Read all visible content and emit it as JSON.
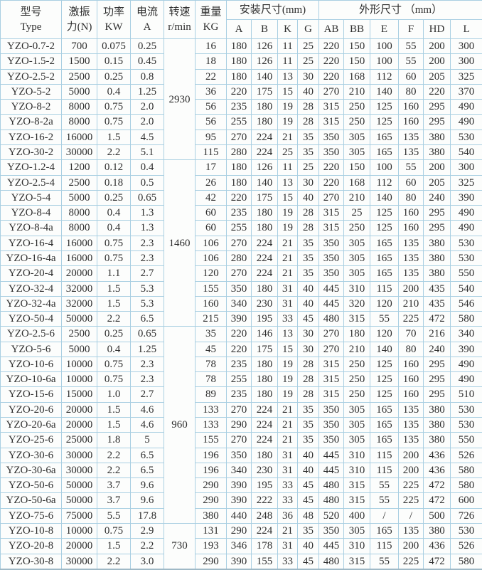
{
  "colors": {
    "grid": "#a9cfe2",
    "text": "#2e2e2e",
    "bg": "#fcfdfc"
  },
  "table": {
    "headers": {
      "type": {
        "l1": "型号",
        "l2": "Type"
      },
      "force": {
        "l1": "激振",
        "l2": "力(N)"
      },
      "power": {
        "l1": "功率",
        "l2": "KW"
      },
      "current": {
        "l1": "电流",
        "l2": "A"
      },
      "speed": {
        "l1": "转速",
        "l2": "r/min"
      },
      "weight": {
        "l1": "重量",
        "l2": "KG"
      },
      "install_group": "安装尺寸(mm)",
      "install_cols": [
        "A",
        "B",
        "K",
        "G"
      ],
      "shape_group": "外形尺寸 （mm）",
      "shape_cols": [
        "AB",
        "BB",
        "E",
        "F",
        "HD",
        "L"
      ]
    },
    "speed_groups": [
      {
        "rpm": "2930",
        "rows": 8
      },
      {
        "rpm": "1460",
        "rows": 11
      },
      {
        "rpm": "960",
        "rows": 13
      },
      {
        "rpm": "730",
        "rows": 3
      }
    ],
    "col_keys": [
      "type",
      "force",
      "power",
      "current",
      "weight",
      "a",
      "b",
      "k",
      "g",
      "ab",
      "bb",
      "e",
      "f",
      "hd",
      "l"
    ],
    "rows": [
      [
        "YZO-0.7-2",
        "700",
        "0.075",
        "0.25",
        "16",
        "180",
        "126",
        "11",
        "25",
        "220",
        "150",
        "100",
        "55",
        "200",
        "300"
      ],
      [
        "YZO-1.5-2",
        "1500",
        "0.15",
        "0.45",
        "18",
        "180",
        "126",
        "11",
        "25",
        "220",
        "150",
        "100",
        "55",
        "200",
        "300"
      ],
      [
        "YZO-2.5-2",
        "2500",
        "0.25",
        "0.8",
        "22",
        "180",
        "140",
        "13",
        "30",
        "220",
        "168",
        "112",
        "60",
        "205",
        "325"
      ],
      [
        "YZO-5-2",
        "5000",
        "0.4",
        "1.25",
        "36",
        "220",
        "175",
        "15",
        "40",
        "270",
        "210",
        "140",
        "80",
        "220",
        "370"
      ],
      [
        "YZO-8-2",
        "8000",
        "0.75",
        "2.0",
        "56",
        "235",
        "180",
        "19",
        "28",
        "315",
        "250",
        "125",
        "160",
        "295",
        "490"
      ],
      [
        "YZO-8-2a",
        "8000",
        "0.75",
        "2.0",
        "56",
        "255",
        "180",
        "19",
        "28",
        "315",
        "250",
        "125",
        "160",
        "295",
        "490"
      ],
      [
        "YZO-16-2",
        "16000",
        "1.5",
        "4.5",
        "95",
        "270",
        "224",
        "21",
        "35",
        "350",
        "305",
        "165",
        "135",
        "380",
        "530"
      ],
      [
        "YZO-30-2",
        "30000",
        "2.2",
        "5.1",
        "115",
        "280",
        "224",
        "25",
        "35",
        "350",
        "305",
        "165",
        "135",
        "380",
        "540"
      ],
      [
        "YZO-1.2-4",
        "1200",
        "0.12",
        "0.4",
        "17",
        "180",
        "126",
        "11",
        "25",
        "220",
        "150",
        "100",
        "55",
        "200",
        "300"
      ],
      [
        "YZO-2.5-4",
        "2500",
        "0.18",
        "0.5",
        "26",
        "180",
        "140",
        "13",
        "30",
        "220",
        "168",
        "112",
        "60",
        "205",
        "325"
      ],
      [
        "YZO-5-4",
        "5000",
        "0.25",
        "0.65",
        "42",
        "220",
        "175",
        "15",
        "40",
        "270",
        "210",
        "140",
        "80",
        "240",
        "390"
      ],
      [
        "YZO-8-4",
        "8000",
        "0.4",
        "1.3",
        "60",
        "235",
        "180",
        "19",
        "28",
        "315",
        "25",
        "125",
        "160",
        "295",
        "490"
      ],
      [
        "YZO-8-4a",
        "8000",
        "0.4",
        "1.3",
        "60",
        "255",
        "180",
        "19",
        "28",
        "315",
        "250",
        "125",
        "160",
        "295",
        "490"
      ],
      [
        "YZO-16-4",
        "16000",
        "0.75",
        "2.3",
        "106",
        "270",
        "224",
        "21",
        "35",
        "350",
        "305",
        "165",
        "135",
        "380",
        "530"
      ],
      [
        "YZO-16-4a",
        "16000",
        "0.75",
        "2.3",
        "106",
        "280",
        "224",
        "21",
        "35",
        "350",
        "305",
        "165",
        "135",
        "380",
        "530"
      ],
      [
        "YZO-20-4",
        "20000",
        "1.1",
        "2.7",
        "120",
        "270",
        "224",
        "21",
        "35",
        "350",
        "305",
        "165",
        "135",
        "380",
        "550"
      ],
      [
        "YZO-32-4",
        "32000",
        "1.5",
        "5.3",
        "155",
        "350",
        "180",
        "31",
        "40",
        "445",
        "310",
        "115",
        "200",
        "435",
        "540"
      ],
      [
        "YZO-32-4a",
        "32000",
        "1.5",
        "5.3",
        "160",
        "340",
        "230",
        "31",
        "40",
        "445",
        "320",
        "120",
        "210",
        "435",
        "546"
      ],
      [
        "YZO-50-4",
        "50000",
        "2.2",
        "6.5",
        "215",
        "390",
        "195",
        "33",
        "45",
        "480",
        "315",
        "55",
        "225",
        "472",
        "580"
      ],
      [
        "YZO-2.5-6",
        "2500",
        "0.25",
        "0.65",
        "35",
        "220",
        "146",
        "13",
        "30",
        "270",
        "180",
        "120",
        "70",
        "216",
        "340"
      ],
      [
        "YZO-5-6",
        "5000",
        "0.4",
        "1.25",
        "45",
        "220",
        "175",
        "15",
        "30",
        "270",
        "210",
        "140",
        "80",
        "240",
        "390"
      ],
      [
        "YZO-10-6",
        "10000",
        "0.75",
        "2.3",
        "78",
        "235",
        "180",
        "19",
        "28",
        "315",
        "250",
        "125",
        "160",
        "295",
        "490"
      ],
      [
        "YZO-10-6a",
        "10000",
        "0.75",
        "2.3",
        "78",
        "255",
        "180",
        "19",
        "28",
        "315",
        "250",
        "125",
        "160",
        "295",
        "490"
      ],
      [
        "YZO-15-6",
        "15000",
        "1.0",
        "2.7",
        "89",
        "235",
        "180",
        "19",
        "28",
        "315",
        "250",
        "125",
        "160",
        "295",
        "510"
      ],
      [
        "YZO-20-6",
        "20000",
        "1.5",
        "4.6",
        "133",
        "270",
        "224",
        "21",
        "35",
        "350",
        "305",
        "165",
        "135",
        "380",
        "530"
      ],
      [
        "YZO-20-6a",
        "20000",
        "1.5",
        "4.6",
        "133",
        "290",
        "224",
        "21",
        "35",
        "350",
        "305",
        "165",
        "135",
        "380",
        "530"
      ],
      [
        "YZO-25-6",
        "25000",
        "1.8",
        "5",
        "155",
        "270",
        "224",
        "21",
        "35",
        "350",
        "305",
        "165",
        "135",
        "380",
        "550"
      ],
      [
        "YZO-30-6",
        "30000",
        "2.2",
        "6.5",
        "196",
        "350",
        "180",
        "31",
        "40",
        "445",
        "310",
        "115",
        "200",
        "436",
        "526"
      ],
      [
        "YZO-30-6a",
        "30000",
        "2.2",
        "6.5",
        "196",
        "340",
        "230",
        "31",
        "40",
        "445",
        "310",
        "115",
        "200",
        "436",
        "580"
      ],
      [
        "YZO-50-6",
        "50000",
        "3.7",
        "9.6",
        "290",
        "390",
        "195",
        "33",
        "45",
        "480",
        "315",
        "55",
        "225",
        "472",
        "580"
      ],
      [
        "YZO-50-6a",
        "50000",
        "3.7",
        "9.6",
        "290",
        "390",
        "222",
        "33",
        "45",
        "480",
        "315",
        "55",
        "225",
        "472",
        "600"
      ],
      [
        "YZO-75-6",
        "75000",
        "5.5",
        "17.8",
        "380",
        "440",
        "248",
        "36",
        "48",
        "520",
        "400",
        "/",
        "/",
        "500",
        "726"
      ],
      [
        "YZO-10-8",
        "10000",
        "0.75",
        "2.9",
        "131",
        "290",
        "224",
        "21",
        "35",
        "350",
        "305",
        "165",
        "135",
        "380",
        "530"
      ],
      [
        "YZO-20-8",
        "20000",
        "1.5",
        "2.2",
        "193",
        "346",
        "178",
        "31",
        "40",
        "445",
        "310",
        "115",
        "200",
        "436",
        "526"
      ],
      [
        "YZO-30-8",
        "30000",
        "2.2",
        "3.0",
        "290",
        "390",
        "155",
        "33",
        "45",
        "480",
        "315",
        "55",
        "225",
        "472",
        "580"
      ]
    ]
  }
}
